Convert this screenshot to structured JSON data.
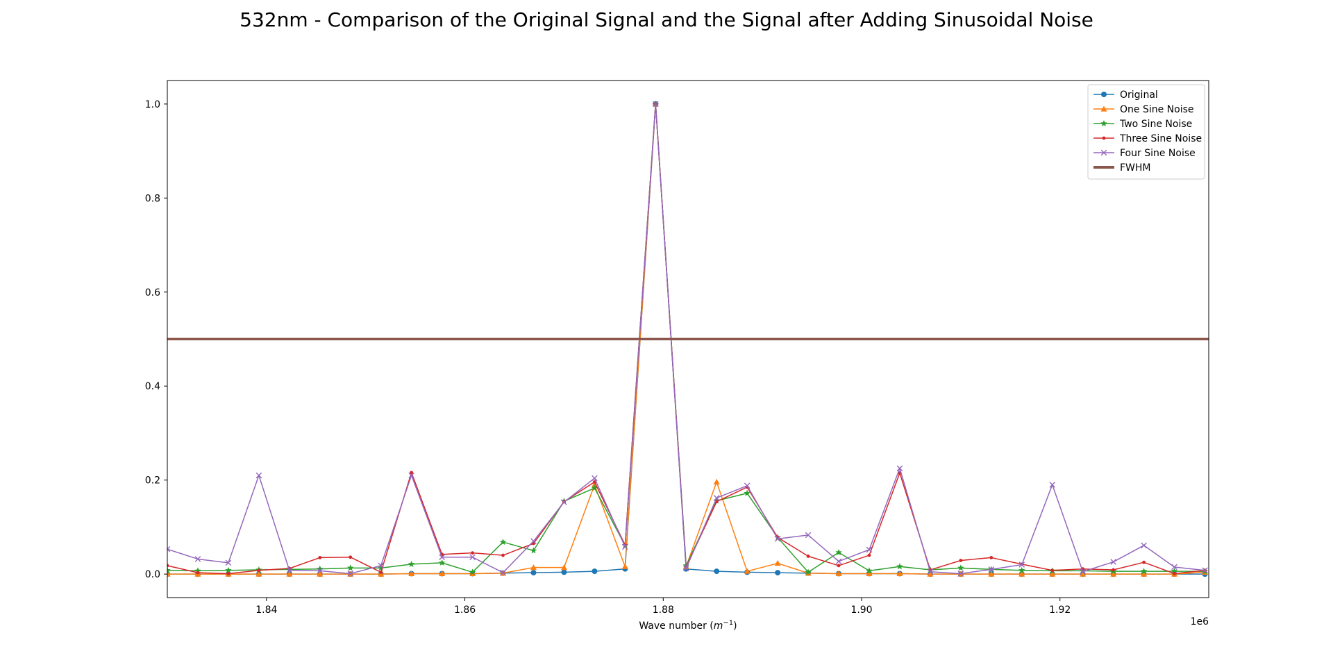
{
  "chart_data": {
    "type": "line",
    "title": "532nm - Comparison of the Original Signal and the Signal after Adding Sinusoidal Noise",
    "xlabel_main": "Wave number (",
    "xlabel_unit": "m",
    "xlabel_exp": "−1",
    "xlabel_close": ")",
    "ylabel": "",
    "x_offset_label": "1e6",
    "xlim": [
      1830000,
      1935000
    ],
    "ylim": [
      -0.05,
      1.05
    ],
    "xticks": [
      1840000,
      1860000,
      1880000,
      1900000,
      1920000
    ],
    "xtick_labels": [
      "1.84",
      "1.86",
      "1.88",
      "1.90",
      "1.92"
    ],
    "yticks": [
      0.0,
      0.2,
      0.4,
      0.6,
      0.8,
      1.0
    ],
    "ytick_labels": [
      "0.0",
      "0.2",
      "0.4",
      "0.6",
      "0.8",
      "1.0"
    ],
    "grid": false,
    "legend_position": "top-right",
    "x": [
      1830000,
      1833077,
      1836154,
      1839231,
      1842308,
      1845385,
      1848462,
      1851538,
      1854615,
      1857692,
      1860769,
      1863846,
      1866923,
      1870000,
      1873077,
      1876154,
      1879231,
      1882308,
      1885385,
      1888462,
      1891538,
      1894615,
      1897692,
      1900769,
      1903846,
      1906923,
      1910000,
      1913077,
      1916154,
      1919231,
      1922308,
      1925385,
      1928462,
      1931538,
      1934615
    ],
    "series": [
      {
        "name": "Original",
        "color": "#1f77b4",
        "marker": "circle",
        "linewidth": 1.5,
        "values": [
          0.0,
          0.0,
          0.0,
          0.0,
          0.0,
          0.0,
          0.0,
          0.0,
          0.001,
          0.001,
          0.001,
          0.002,
          0.003,
          0.004,
          0.006,
          0.011,
          1.0,
          0.011,
          0.006,
          0.004,
          0.003,
          0.002,
          0.001,
          0.001,
          0.001,
          0.0,
          0.0,
          0.0,
          0.0,
          0.0,
          0.0,
          0.0,
          0.0,
          0.0,
          0.0
        ]
      },
      {
        "name": "One Sine Noise",
        "color": "#ff7f0e",
        "marker": "triangle",
        "linewidth": 1.5,
        "values": [
          0.0,
          0.0,
          0.0,
          0.0,
          0.0,
          0.0,
          0.0,
          0.0,
          0.001,
          0.001,
          0.001,
          0.002,
          0.014,
          0.014,
          0.19,
          0.016,
          1.0,
          0.016,
          0.196,
          0.006,
          0.023,
          0.002,
          0.001,
          0.001,
          0.001,
          0.0,
          0.0,
          0.0,
          0.0,
          0.0,
          0.0,
          0.0,
          0.0,
          0.0,
          0.004
        ]
      },
      {
        "name": "Two Sine Noise",
        "color": "#2ca02c",
        "marker": "star",
        "linewidth": 1.5,
        "values": [
          0.008,
          0.007,
          0.008,
          0.009,
          0.01,
          0.011,
          0.013,
          0.013,
          0.021,
          0.024,
          0.004,
          0.068,
          0.05,
          0.155,
          0.183,
          0.061,
          1.0,
          0.018,
          0.156,
          0.172,
          0.078,
          0.004,
          0.046,
          0.007,
          0.016,
          0.009,
          0.013,
          0.01,
          0.008,
          0.007,
          0.007,
          0.006,
          0.006,
          0.006,
          0.006
        ]
      },
      {
        "name": "Three Sine Noise",
        "color": "#d62728",
        "marker": "dot",
        "linewidth": 1.5,
        "values": [
          0.018,
          0.003,
          0.001,
          0.008,
          0.012,
          0.035,
          0.036,
          0.004,
          0.216,
          0.042,
          0.045,
          0.04,
          0.065,
          0.154,
          0.196,
          0.062,
          1.0,
          0.015,
          0.154,
          0.185,
          0.078,
          0.038,
          0.018,
          0.04,
          0.215,
          0.009,
          0.029,
          0.035,
          0.021,
          0.008,
          0.011,
          0.009,
          0.025,
          0.001,
          0.008
        ]
      },
      {
        "name": "Four Sine Noise",
        "color": "#9467bd",
        "marker": "x",
        "linewidth": 1.5,
        "values": [
          0.053,
          0.032,
          0.024,
          0.21,
          0.008,
          0.007,
          0.001,
          0.018,
          0.21,
          0.036,
          0.036,
          0.003,
          0.07,
          0.153,
          0.204,
          0.058,
          1.0,
          0.012,
          0.162,
          0.188,
          0.075,
          0.083,
          0.027,
          0.052,
          0.225,
          0.005,
          0.001,
          0.01,
          0.02,
          0.19,
          0.005,
          0.026,
          0.061,
          0.015,
          0.008
        ]
      },
      {
        "name": "FWHM",
        "color": "#8c564b",
        "type": "hline",
        "linewidth": 3.5,
        "y": 0.5
      }
    ]
  }
}
